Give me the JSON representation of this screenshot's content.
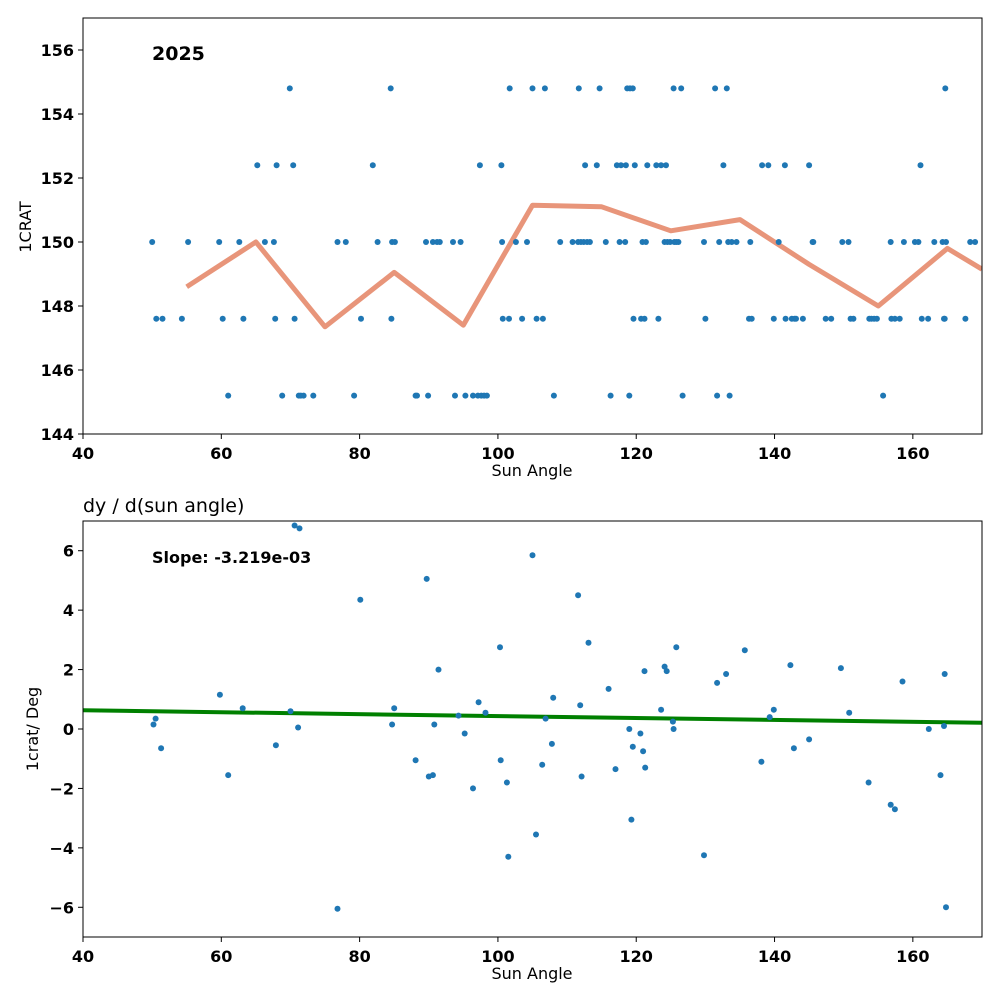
{
  "chart_data": [
    {
      "type": "scatter",
      "title": "",
      "annotation": "2025",
      "xlabel": "Sun Angle",
      "ylabel": "1CRAT",
      "xlim": [
        40,
        170
      ],
      "ylim": [
        144,
        157
      ],
      "xticks": [
        "40",
        "60",
        "80",
        "100",
        "120",
        "140",
        "160"
      ],
      "yticks": [
        "144",
        "146",
        "148",
        "150",
        "152",
        "154",
        "156"
      ],
      "grid": false,
      "colors": {
        "points": "#1f77b4",
        "line": "#e8957a"
      },
      "series": [
        {
          "kind": "scatter",
          "points": [
            [
              50.0,
              150.0
            ],
            [
              50.6,
              147.6
            ],
            [
              51.5,
              147.6
            ],
            [
              54.3,
              147.6
            ],
            [
              55.2,
              150.0
            ],
            [
              59.7,
              150.0
            ],
            [
              60.2,
              147.6
            ],
            [
              61.0,
              145.2
            ],
            [
              62.6,
              150.0
            ],
            [
              63.2,
              147.6
            ],
            [
              65.2,
              152.4
            ],
            [
              66.3,
              150.0
            ],
            [
              67.6,
              150.0
            ],
            [
              67.8,
              147.6
            ],
            [
              68.0,
              152.4
            ],
            [
              68.8,
              145.2
            ],
            [
              69.9,
              154.8
            ],
            [
              70.4,
              152.4
            ],
            [
              70.6,
              147.6
            ],
            [
              71.2,
              145.2
            ],
            [
              71.5,
              145.2
            ],
            [
              71.9,
              145.2
            ],
            [
              73.3,
              145.2
            ],
            [
              76.8,
              150.0
            ],
            [
              78.0,
              150.0
            ],
            [
              79.2,
              145.2
            ],
            [
              80.2,
              147.6
            ],
            [
              81.9,
              152.4
            ],
            [
              82.6,
              150.0
            ],
            [
              84.5,
              154.8
            ],
            [
              84.6,
              147.6
            ],
            [
              84.7,
              150.0
            ],
            [
              85.1,
              150.0
            ],
            [
              88.1,
              145.2
            ],
            [
              88.3,
              145.2
            ],
            [
              89.6,
              150.0
            ],
            [
              89.9,
              145.2
            ],
            [
              90.6,
              150.0
            ],
            [
              91.2,
              150.0
            ],
            [
              91.6,
              150.0
            ],
            [
              93.5,
              150.0
            ],
            [
              93.8,
              145.2
            ],
            [
              94.6,
              150.0
            ],
            [
              95.3,
              145.2
            ],
            [
              96.4,
              145.2
            ],
            [
              97.1,
              145.2
            ],
            [
              97.4,
              152.4
            ],
            [
              97.6,
              145.2
            ],
            [
              98.0,
              145.2
            ],
            [
              98.4,
              145.2
            ],
            [
              100.5,
              152.4
            ],
            [
              100.6,
              150.0
            ],
            [
              100.7,
              147.6
            ],
            [
              101.6,
              147.6
            ],
            [
              101.7,
              154.8
            ],
            [
              102.6,
              150.0
            ],
            [
              103.5,
              147.6
            ],
            [
              104.2,
              150.0
            ],
            [
              105.0,
              154.8
            ],
            [
              105.6,
              147.6
            ],
            [
              106.5,
              147.6
            ],
            [
              106.8,
              154.8
            ],
            [
              108.1,
              145.2
            ],
            [
              109.0,
              150.0
            ],
            [
              110.8,
              150.0
            ],
            [
              111.6,
              150.0
            ],
            [
              111.7,
              154.8
            ],
            [
              112.0,
              150.0
            ],
            [
              112.4,
              150.0
            ],
            [
              112.6,
              152.4
            ],
            [
              112.9,
              150.0
            ],
            [
              113.3,
              150.0
            ],
            [
              114.3,
              152.4
            ],
            [
              114.7,
              154.8
            ],
            [
              115.6,
              150.0
            ],
            [
              116.3,
              145.2
            ],
            [
              117.2,
              152.4
            ],
            [
              117.6,
              150.0
            ],
            [
              117.8,
              152.4
            ],
            [
              118.4,
              150.0
            ],
            [
              118.5,
              152.4
            ],
            [
              118.7,
              154.8
            ],
            [
              119.0,
              145.2
            ],
            [
              119.1,
              154.8
            ],
            [
              119.5,
              154.8
            ],
            [
              119.6,
              147.6
            ],
            [
              119.8,
              152.4
            ],
            [
              120.7,
              147.6
            ],
            [
              120.9,
              150.0
            ],
            [
              121.2,
              147.6
            ],
            [
              121.4,
              150.0
            ],
            [
              121.6,
              152.4
            ],
            [
              122.9,
              152.4
            ],
            [
              123.2,
              147.6
            ],
            [
              123.6,
              152.4
            ],
            [
              124.1,
              150.0
            ],
            [
              124.3,
              152.4
            ],
            [
              124.5,
              150.0
            ],
            [
              124.9,
              150.0
            ],
            [
              125.4,
              154.8
            ],
            [
              125.5,
              150.0
            ],
            [
              125.8,
              150.0
            ],
            [
              126.1,
              150.0
            ],
            [
              126.5,
              154.8
            ],
            [
              126.7,
              145.2
            ],
            [
              129.8,
              150.0
            ],
            [
              130.0,
              147.6
            ],
            [
              131.4,
              154.8
            ],
            [
              131.7,
              145.2
            ],
            [
              132.0,
              150.0
            ],
            [
              132.6,
              152.4
            ],
            [
              133.1,
              154.8
            ],
            [
              133.3,
              150.0
            ],
            [
              133.5,
              145.2
            ],
            [
              133.8,
              150.0
            ],
            [
              134.5,
              150.0
            ],
            [
              136.3,
              147.6
            ],
            [
              136.5,
              150.0
            ],
            [
              136.7,
              147.6
            ],
            [
              138.2,
              152.4
            ],
            [
              139.1,
              152.4
            ],
            [
              139.9,
              147.6
            ],
            [
              140.6,
              150.0
            ],
            [
              141.5,
              152.4
            ],
            [
              141.6,
              147.6
            ],
            [
              142.5,
              147.6
            ],
            [
              142.9,
              147.6
            ],
            [
              143.1,
              147.6
            ],
            [
              144.1,
              147.6
            ],
            [
              145.0,
              152.4
            ],
            [
              145.5,
              150.0
            ],
            [
              145.6,
              150.0
            ],
            [
              147.4,
              147.6
            ],
            [
              148.2,
              147.6
            ],
            [
              149.8,
              150.0
            ],
            [
              150.7,
              150.0
            ],
            [
              151.0,
              147.6
            ],
            [
              151.4,
              147.6
            ],
            [
              153.7,
              147.6
            ],
            [
              154.0,
              147.6
            ],
            [
              154.4,
              147.6
            ],
            [
              154.8,
              147.6
            ],
            [
              155.7,
              145.2
            ],
            [
              156.8,
              150.0
            ],
            [
              156.9,
              147.6
            ],
            [
              157.4,
              147.6
            ],
            [
              158.1,
              147.6
            ],
            [
              158.7,
              150.0
            ],
            [
              160.3,
              150.0
            ],
            [
              160.8,
              150.0
            ],
            [
              161.1,
              152.4
            ],
            [
              161.3,
              147.6
            ],
            [
              162.2,
              147.6
            ],
            [
              163.1,
              150.0
            ],
            [
              164.3,
              150.0
            ],
            [
              164.5,
              147.6
            ],
            [
              164.6,
              147.6
            ],
            [
              164.7,
              154.8
            ],
            [
              164.8,
              150.0
            ],
            [
              167.6,
              147.6
            ],
            [
              168.3,
              150.0
            ],
            [
              169.0,
              150.0
            ]
          ]
        },
        {
          "kind": "line",
          "x": [
            55,
            65,
            75,
            85,
            95,
            105,
            115,
            125,
            135,
            145,
            155,
            165,
            170
          ],
          "y": [
            148.6,
            150.0,
            147.35,
            149.05,
            147.4,
            151.15,
            151.1,
            150.35,
            150.7,
            149.3,
            148.0,
            149.8,
            149.15
          ]
        }
      ]
    },
    {
      "type": "scatter",
      "title": "dy / d(sun angle)",
      "annotation": "Slope: -3.219e-03",
      "xlabel": "Sun Angle",
      "ylabel": "1crat/ Deg",
      "xlim": [
        40,
        170
      ],
      "ylim": [
        -7,
        7
      ],
      "xticks": [
        "40",
        "60",
        "80",
        "100",
        "120",
        "140",
        "160"
      ],
      "yticks": [
        "−6",
        "−4",
        "−2",
        "0",
        "2",
        "4",
        "6"
      ],
      "grid": false,
      "colors": {
        "points": "#1f77b4",
        "line": "#008000"
      },
      "series": [
        {
          "kind": "scatter",
          "points": [
            [
              50.2,
              0.15
            ],
            [
              50.5,
              0.35
            ],
            [
              51.3,
              -0.65
            ],
            [
              59.8,
              1.15
            ],
            [
              61.0,
              -1.55
            ],
            [
              63.1,
              0.7
            ],
            [
              67.9,
              -0.55
            ],
            [
              70.0,
              0.6
            ],
            [
              70.6,
              6.85
            ],
            [
              71.1,
              0.05
            ],
            [
              71.3,
              6.75
            ],
            [
              76.8,
              -6.05
            ],
            [
              80.1,
              4.35
            ],
            [
              84.7,
              0.15
            ],
            [
              85.0,
              0.7
            ],
            [
              88.1,
              -1.05
            ],
            [
              89.7,
              5.05
            ],
            [
              90.0,
              -1.6
            ],
            [
              90.6,
              -1.55
            ],
            [
              90.8,
              0.15
            ],
            [
              91.4,
              2.0
            ],
            [
              94.3,
              0.45
            ],
            [
              95.2,
              -0.15
            ],
            [
              96.4,
              -2.0
            ],
            [
              97.2,
              0.9
            ],
            [
              98.2,
              0.55
            ],
            [
              100.3,
              2.75
            ],
            [
              100.4,
              -1.05
            ],
            [
              101.3,
              -1.8
            ],
            [
              101.5,
              -4.3
            ],
            [
              105.0,
              5.85
            ],
            [
              105.5,
              -3.55
            ],
            [
              106.4,
              -1.2
            ],
            [
              106.9,
              0.35
            ],
            [
              107.8,
              -0.5
            ],
            [
              108.0,
              1.05
            ],
            [
              111.6,
              4.5
            ],
            [
              111.9,
              0.8
            ],
            [
              112.1,
              -1.6
            ],
            [
              113.1,
              2.9
            ],
            [
              116.0,
              1.35
            ],
            [
              117.0,
              -1.35
            ],
            [
              119.0,
              0.0
            ],
            [
              119.3,
              -3.05
            ],
            [
              119.5,
              -0.6
            ],
            [
              120.6,
              -0.15
            ],
            [
              121.0,
              -0.75
            ],
            [
              121.2,
              1.95
            ],
            [
              121.3,
              -1.3
            ],
            [
              123.6,
              0.65
            ],
            [
              124.1,
              2.1
            ],
            [
              124.4,
              1.95
            ],
            [
              125.3,
              0.25
            ],
            [
              125.4,
              0.0
            ],
            [
              125.8,
              2.75
            ],
            [
              129.8,
              -4.25
            ],
            [
              131.7,
              1.55
            ],
            [
              133.0,
              1.85
            ],
            [
              135.7,
              2.65
            ],
            [
              138.1,
              -1.1
            ],
            [
              139.3,
              0.4
            ],
            [
              139.9,
              0.65
            ],
            [
              142.3,
              2.15
            ],
            [
              142.8,
              -0.65
            ],
            [
              145.0,
              -0.35
            ],
            [
              149.6,
              2.05
            ],
            [
              150.8,
              0.55
            ],
            [
              153.6,
              -1.8
            ],
            [
              156.8,
              -2.55
            ],
            [
              157.4,
              -2.7
            ],
            [
              158.5,
              1.6
            ],
            [
              162.3,
              0.0
            ],
            [
              164.0,
              -1.55
            ],
            [
              164.5,
              0.1
            ],
            [
              164.6,
              1.85
            ],
            [
              164.8,
              -6.0
            ]
          ]
        },
        {
          "kind": "line",
          "x": [
            40,
            170
          ],
          "y": [
            0.63,
            0.21
          ]
        }
      ]
    }
  ]
}
